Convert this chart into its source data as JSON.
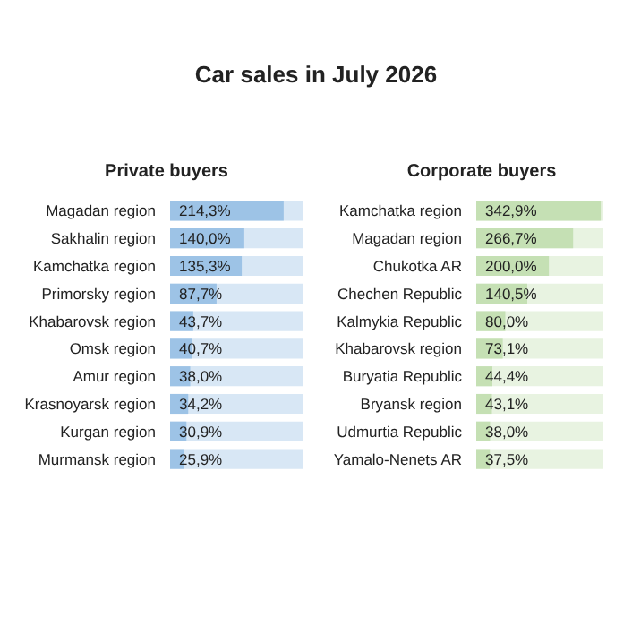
{
  "chart_data": [
    {
      "type": "bar",
      "orientation": "horizontal",
      "title": "Car sales in July 2026",
      "subtitle": "Private buyers",
      "categories": [
        "Magadan region",
        "Sakhalin region",
        "Kamchatka region",
        "Primorsky region",
        "Khabarovsk region",
        "Omsk region",
        "Amur region",
        "Krasnoyarsk region",
        "Kurgan region",
        "Murmansk region"
      ],
      "series": [
        {
          "color": "#9dc3e6",
          "values": [
            214.3,
            140.0,
            135.3,
            87.7,
            43.7,
            40.7,
            38.0,
            34.2,
            30.9,
            25.9
          ],
          "value_labels": [
            "214,3%",
            "140,0%",
            "135,3%",
            "87,7%",
            "43,7%",
            "40,7%",
            "38,0%",
            "34,2%",
            "30,9%",
            "25,9%"
          ]
        }
      ]
    },
    {
      "type": "bar",
      "orientation": "horizontal",
      "subtitle": "Corporate buyers",
      "categories": [
        "Kamchatka region",
        "Magadan region",
        "Chukotka AR",
        "Chechen Republic",
        "Kalmykia Republic",
        "Khabarovsk region",
        "Buryatia Republic",
        "Bryansk region",
        "Udmurtia Republic",
        "Yamalo-Nenets AR"
      ],
      "series": [
        {
          "color": "#c5e0b4",
          "values": [
            342.9,
            266.7,
            200.0,
            140.5,
            80.0,
            73.1,
            44.4,
            43.1,
            38.0,
            37.5
          ],
          "value_labels": [
            "342,9%",
            "266,7%",
            "200,0%",
            "140,5%",
            "80,0%",
            "73,1%",
            "44,4%",
            "43,1%",
            "38,0%",
            "37,5%"
          ]
        }
      ]
    }
  ]
}
